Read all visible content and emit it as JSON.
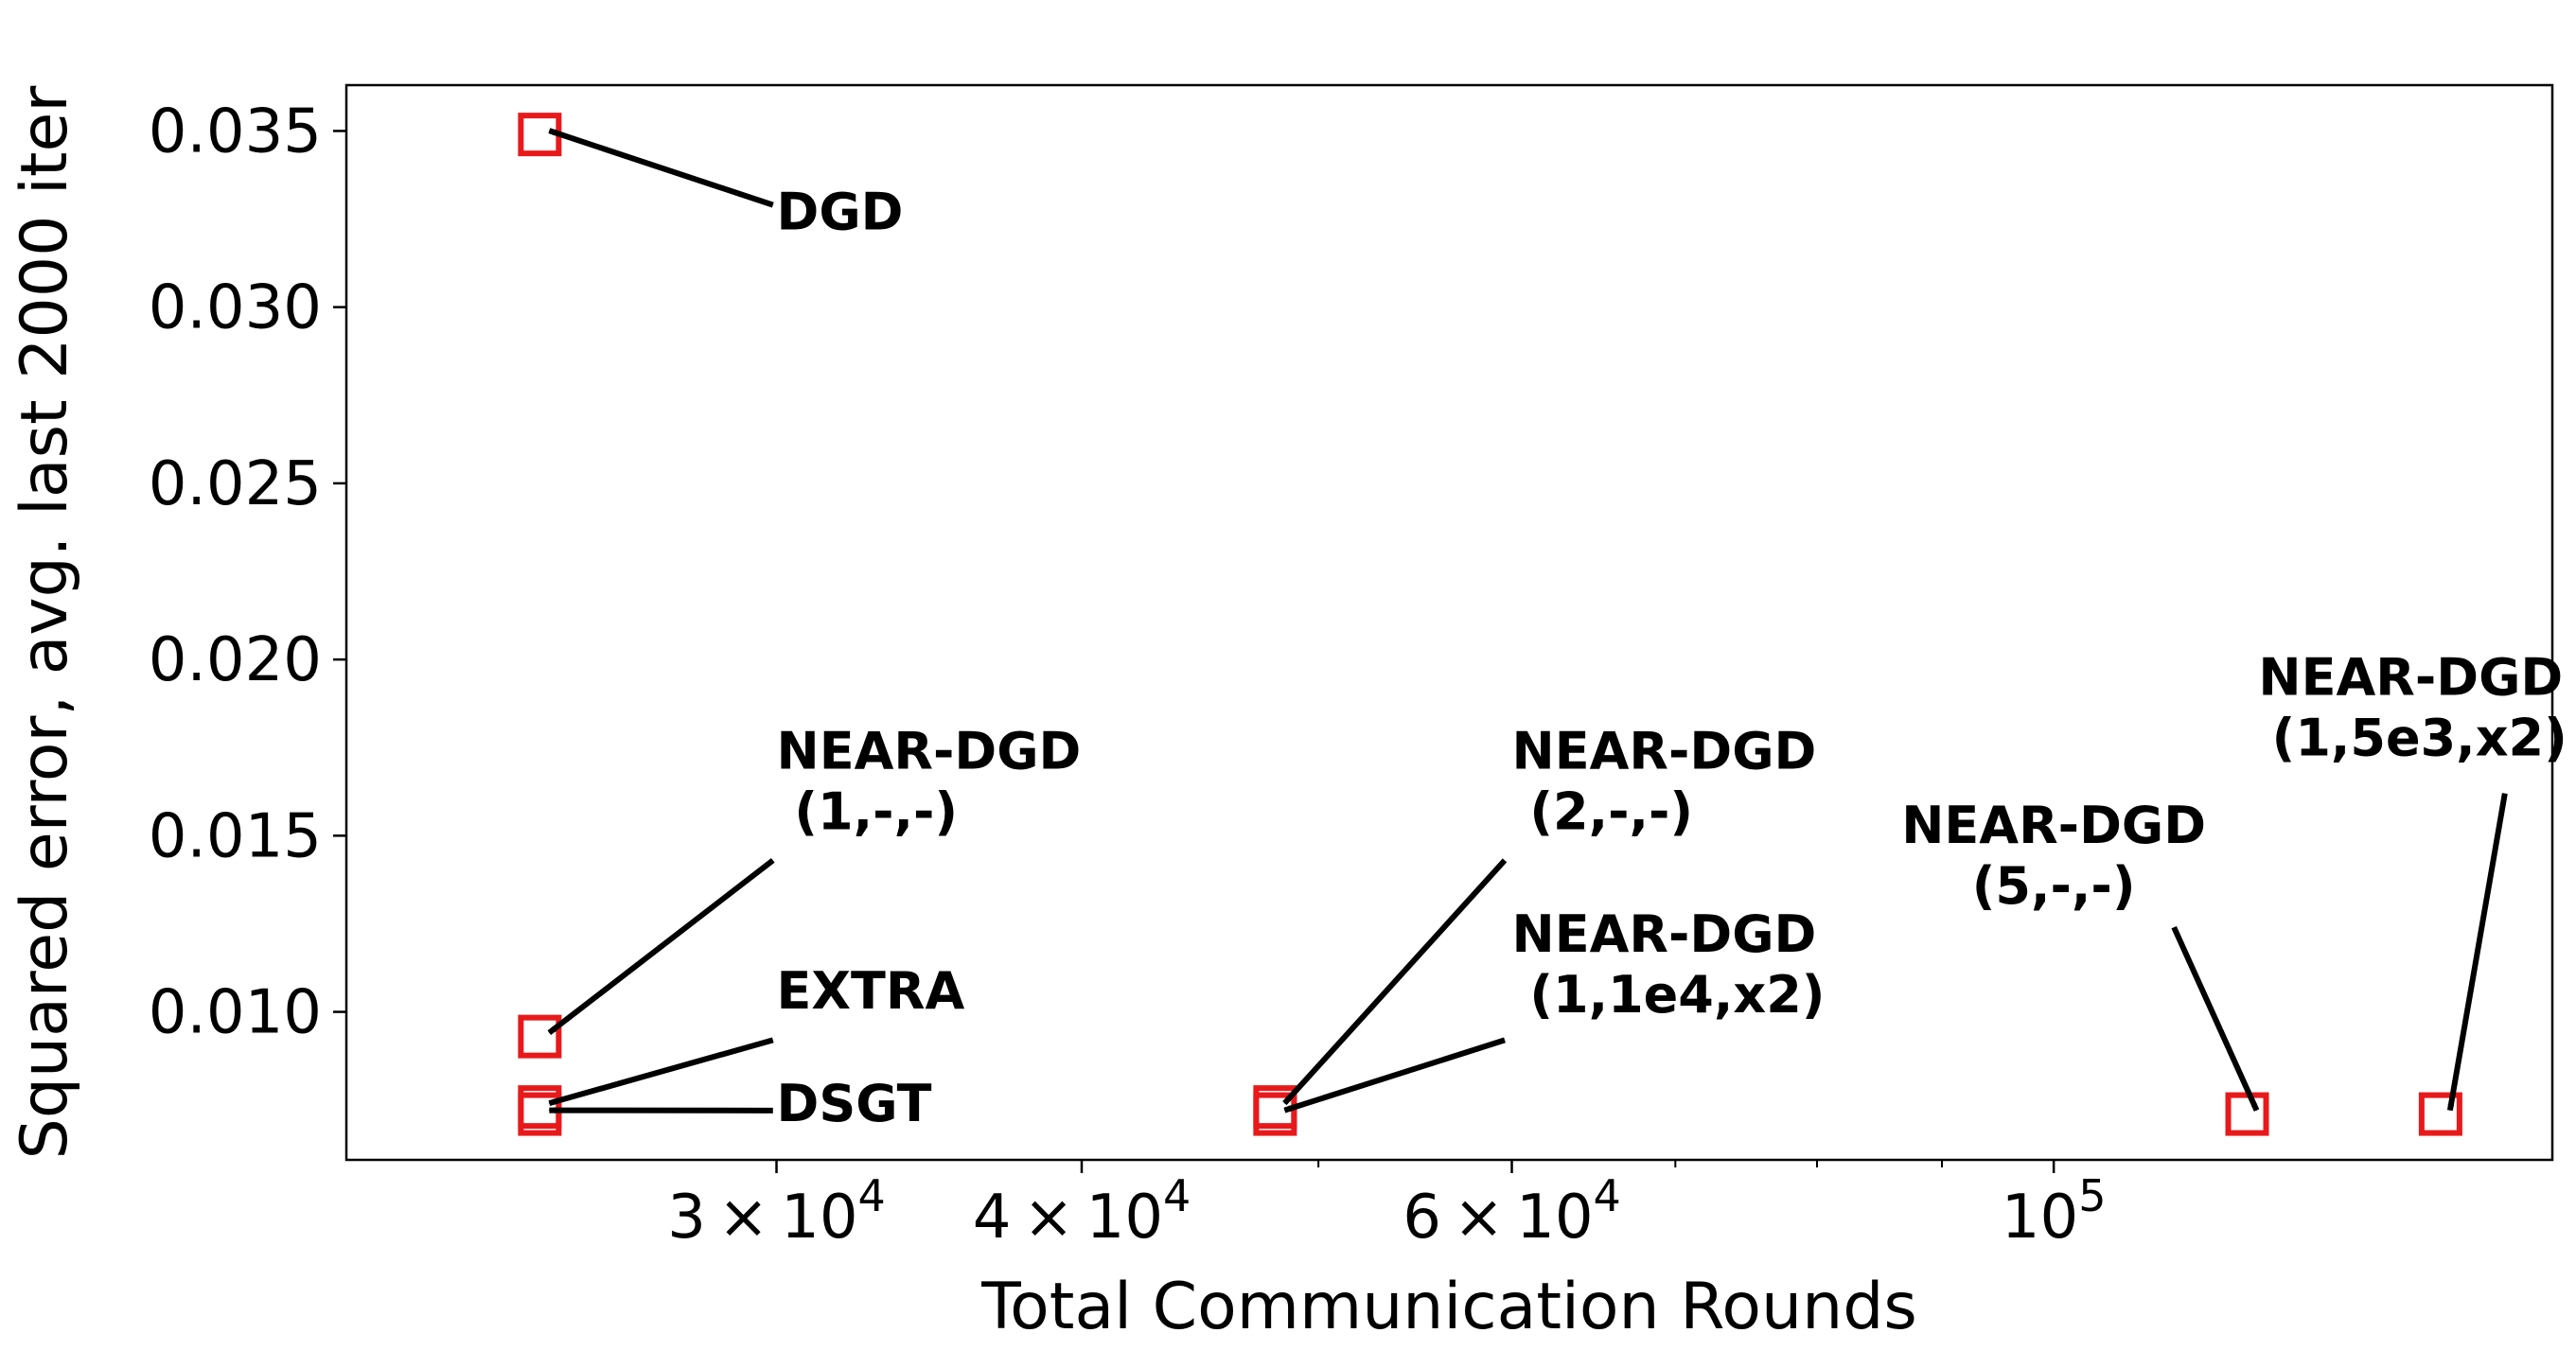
{
  "chart_data": {
    "type": "scatter",
    "xlabel": "Total Communication Rounds",
    "ylabel": "Squared error, avg. last 2000 iter",
    "xscale": "log",
    "xlim": [
      20000,
      160000
    ],
    "ylim": [
      0.0058,
      0.0363
    ],
    "x_major_ticks": [
      {
        "value": 30000,
        "mantissa": "3",
        "exponent": "4"
      },
      {
        "value": 40000,
        "mantissa": "4",
        "exponent": "4"
      },
      {
        "value": 60000,
        "mantissa": "6",
        "exponent": "4"
      },
      {
        "value": 100000,
        "mantissa": "",
        "exponent": "5"
      }
    ],
    "x_minor_ticks": [
      50000,
      70000,
      80000,
      90000
    ],
    "y_ticks": [
      {
        "value": 0.01,
        "label": "0.010"
      },
      {
        "value": 0.015,
        "label": "0.015"
      },
      {
        "value": 0.02,
        "label": "0.020"
      },
      {
        "value": 0.025,
        "label": "0.025"
      },
      {
        "value": 0.03,
        "label": "0.030"
      },
      {
        "value": 0.035,
        "label": "0.035"
      }
    ],
    "marker": {
      "shape": "square",
      "edge_color": "#e8191b",
      "face_color": "none"
    },
    "grid": false,
    "legend": false,
    "points": [
      {
        "x": 24000,
        "y": 0.0349
      },
      {
        "x": 24000,
        "y": 0.0093
      },
      {
        "x": 24000,
        "y": 0.0073
      },
      {
        "x": 24000,
        "y": 0.0071
      },
      {
        "x": 48000,
        "y": 0.0073
      },
      {
        "x": 48000,
        "y": 0.0071
      },
      {
        "x": 120000,
        "y": 0.0071
      },
      {
        "x": 144000,
        "y": 0.0071
      }
    ],
    "annotations": [
      {
        "lines": [
          "DGD"
        ],
        "target": {
          "x": 24000,
          "y": 0.0349
        },
        "text_pos": {
          "x": 30000,
          "y": 0.0322
        },
        "align": "start",
        "tail": {
          "x": 29900,
          "y": 0.0329
        }
      },
      {
        "lines": [
          "NEAR-DGD",
          " (1,-,-)"
        ],
        "target": {
          "x": 24000,
          "y": 0.0093
        },
        "text_pos": {
          "x": 30000,
          "y": 0.0169
        },
        "align": "start",
        "tail": {
          "x": 29900,
          "y": 0.0143
        }
      },
      {
        "lines": [
          "EXTRA"
        ],
        "target": {
          "x": 24000,
          "y": 0.0073
        },
        "text_pos": {
          "x": 30000,
          "y": 0.0101
        },
        "align": "start",
        "tail": {
          "x": 29900,
          "y": 0.0092
        }
      },
      {
        "lines": [
          "DSGT"
        ],
        "target": {
          "x": 24000,
          "y": 0.0071
        },
        "text_pos": {
          "x": 30000,
          "y": 0.0069
        },
        "align": "start",
        "tail": {
          "x": 29900,
          "y": 0.0072
        }
      },
      {
        "lines": [
          "NEAR-DGD",
          " (2,-,-)"
        ],
        "target": {
          "x": 48000,
          "y": 0.0073
        },
        "text_pos": {
          "x": 60000,
          "y": 0.0169
        },
        "align": "start",
        "tail": {
          "x": 59600,
          "y": 0.0143
        }
      },
      {
        "lines": [
          "NEAR-DGD",
          " (1,1e4,x2)"
        ],
        "target": {
          "x": 48000,
          "y": 0.0071
        },
        "text_pos": {
          "x": 60000,
          "y": 0.0117
        },
        "align": "start",
        "tail": {
          "x": 59600,
          "y": 0.0092
        }
      },
      {
        "lines": [
          "NEAR-DGD",
          "(5,-,-)"
        ],
        "target": {
          "x": 120000,
          "y": 0.0071
        },
        "text_pos": {
          "x": 100000,
          "y": 0.0148
        },
        "align": "middle",
        "tail": {
          "x": 112000,
          "y": 0.0124
        }
      },
      {
        "lines": [
          "NEAR-DGD",
          " (1,5e3,x2)"
        ],
        "target": {
          "x": 144000,
          "y": 0.0071
        },
        "text_pos": {
          "x": 140000,
          "y": 0.019
        },
        "align": "middle",
        "tail": {
          "x": 153000,
          "y": 0.0162
        }
      }
    ]
  }
}
